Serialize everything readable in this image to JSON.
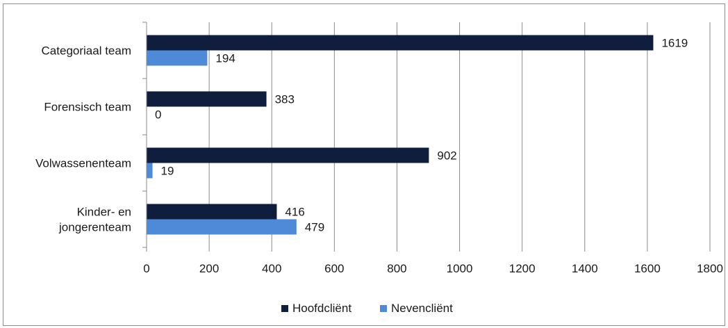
{
  "chart_data": {
    "type": "bar",
    "orientation": "horizontal",
    "categories": [
      [
        "Categoriaal team"
      ],
      [
        "Forensisch team"
      ],
      [
        "Volwassenenteam"
      ],
      [
        "Kinder- en",
        "jongerenteam"
      ]
    ],
    "series": [
      {
        "name": "Hoofdcliënt",
        "color": "#0f1e3d",
        "values": [
          1619,
          383,
          902,
          416
        ]
      },
      {
        "name": "Nevencliënt",
        "color": "#4f8ad8",
        "values": [
          194,
          0,
          19,
          479
        ]
      }
    ],
    "x_ticks": [
      0,
      200,
      400,
      600,
      800,
      1000,
      1200,
      1400,
      1600,
      1800
    ],
    "xlim": [
      0,
      1800
    ],
    "grid": true,
    "legend_position": "bottom",
    "title": "",
    "xlabel": "",
    "ylabel": ""
  }
}
